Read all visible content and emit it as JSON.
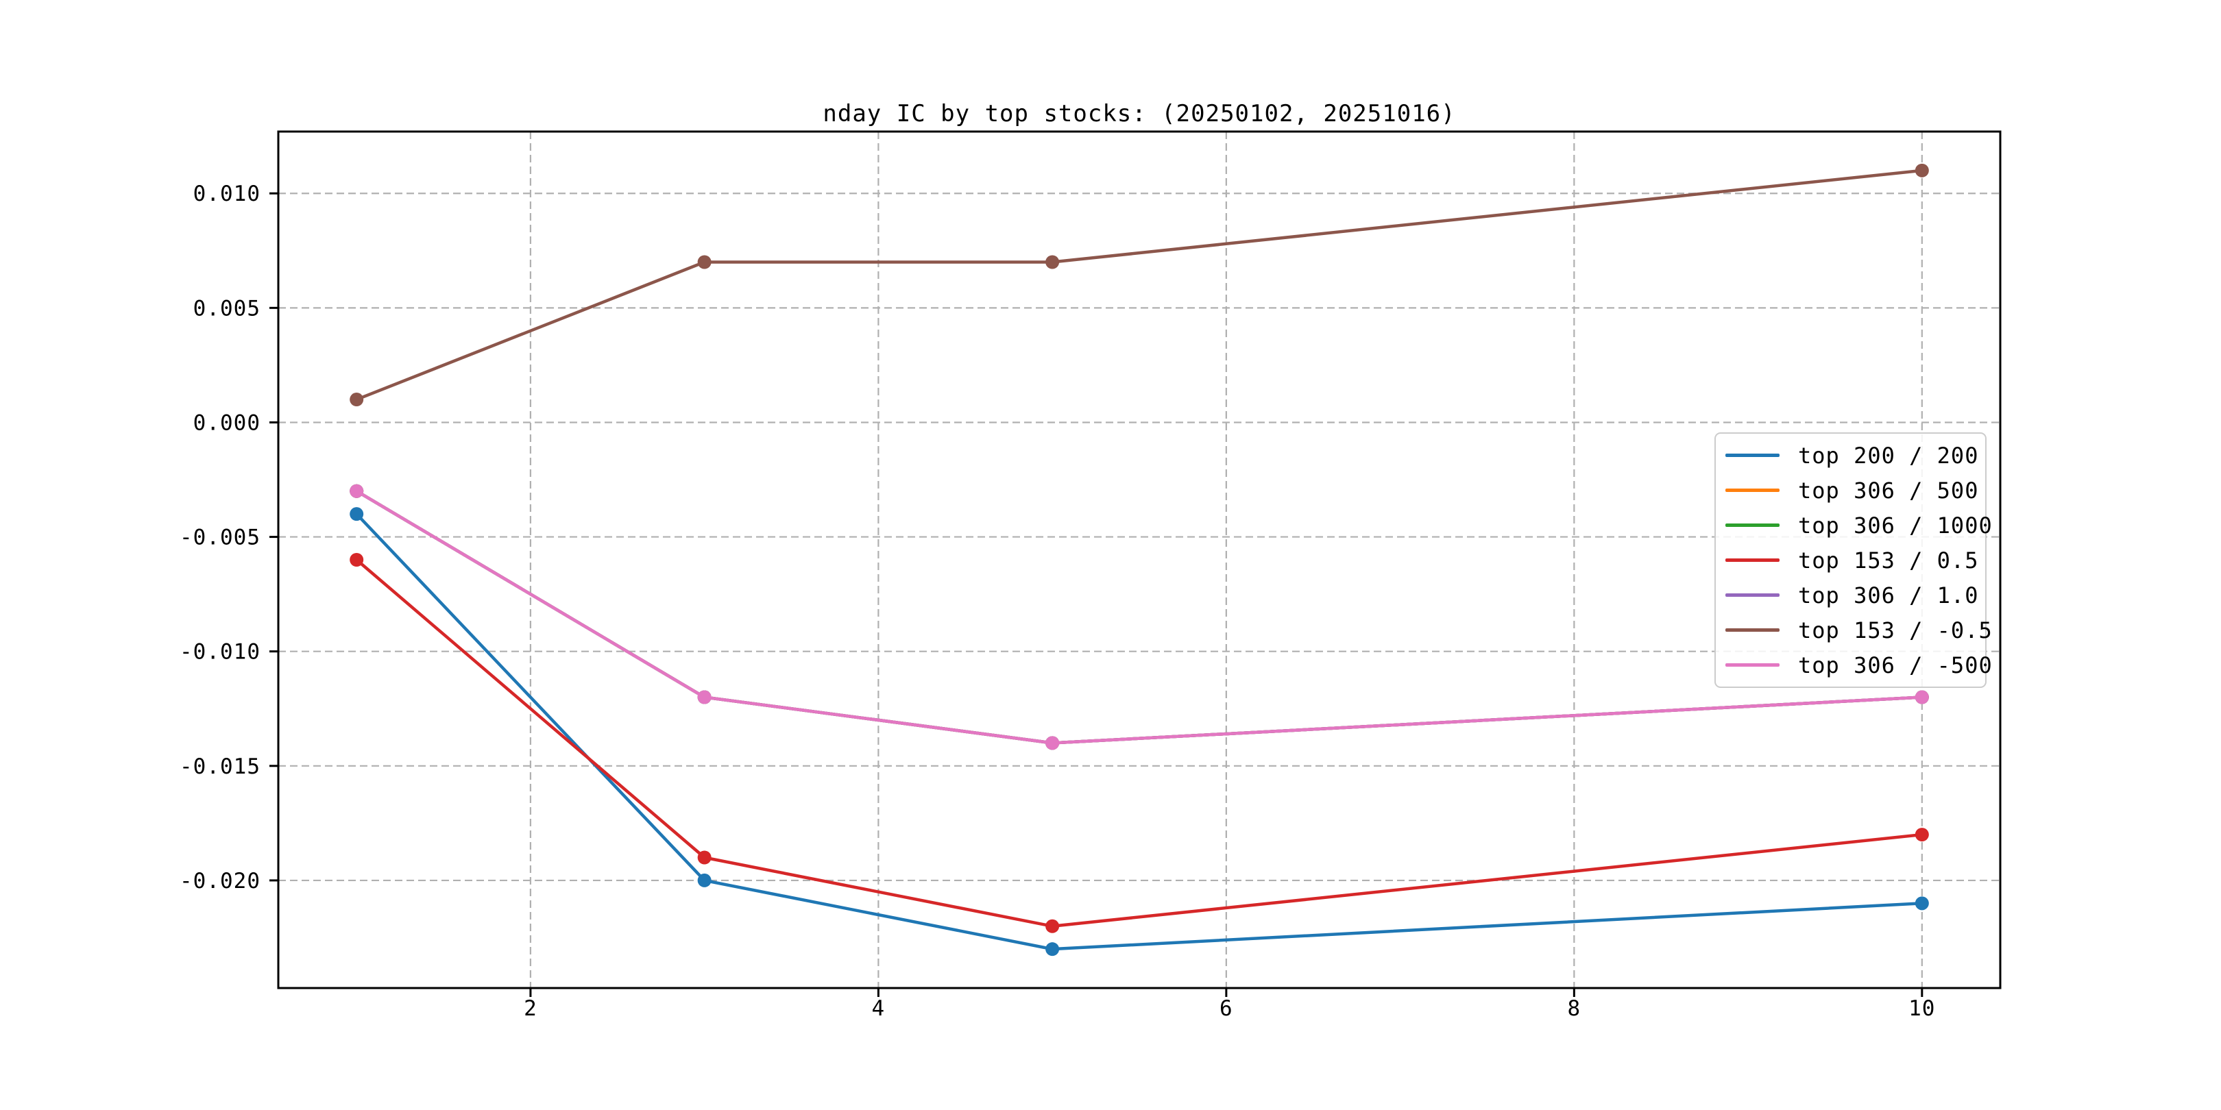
{
  "figure": {
    "background": "#ffffff",
    "axes_color": "#000000",
    "grid_color": "#b0b0b0",
    "legend_border_color": "#cccccc",
    "tick_label_color": "#000000"
  },
  "chart_data": {
    "type": "line",
    "title": "nday IC by top stocks: (20250102, 20251016)",
    "xlabel": "",
    "ylabel": "",
    "x": [
      1,
      3,
      5,
      10
    ],
    "series": [
      {
        "name": "top 200 / 200",
        "color": "#1f77b4",
        "values": [
          -0.004,
          -0.02,
          -0.023,
          -0.021
        ],
        "occluded": false
      },
      {
        "name": "top 306 / 500",
        "color": "#ff7f0e",
        "values": [
          -0.003,
          -0.012,
          -0.014,
          -0.012
        ],
        "occluded": true
      },
      {
        "name": "top 306 / 1000",
        "color": "#2ca02c",
        "values": [
          -0.003,
          -0.012,
          -0.014,
          -0.012
        ],
        "occluded": true
      },
      {
        "name": "top 153 / 0.5",
        "color": "#d62728",
        "values": [
          -0.006,
          -0.019,
          -0.022,
          -0.018
        ],
        "occluded": false
      },
      {
        "name": "top 306 / 1.0",
        "color": "#9467bd",
        "values": [
          -0.003,
          -0.012,
          -0.014,
          -0.012
        ],
        "occluded": true
      },
      {
        "name": "top 153 / -0.5",
        "color": "#8c564b",
        "values": [
          0.001,
          0.007,
          0.007,
          0.011
        ],
        "occluded": false
      },
      {
        "name": "top 306 / -500",
        "color": "#e377c2",
        "values": [
          -0.003,
          -0.012,
          -0.014,
          -0.012
        ],
        "occluded": false
      }
    ],
    "xlim": [
      0.55,
      10.45
    ],
    "ylim": [
      -0.0247,
      0.0127
    ],
    "xticks": [
      2,
      4,
      6,
      8,
      10
    ],
    "xtick_labels": [
      "2",
      "4",
      "6",
      "8",
      "10"
    ],
    "yticks": [
      0.01,
      0.005,
      0.0,
      -0.005,
      -0.01,
      -0.015,
      -0.02
    ],
    "ytick_labels": [
      "0.010",
      "0.005",
      "0.000",
      "-0.005",
      "-0.010",
      "-0.015",
      "-0.020"
    ],
    "grid": true,
    "marker": "o",
    "legend_position": "center-right"
  }
}
